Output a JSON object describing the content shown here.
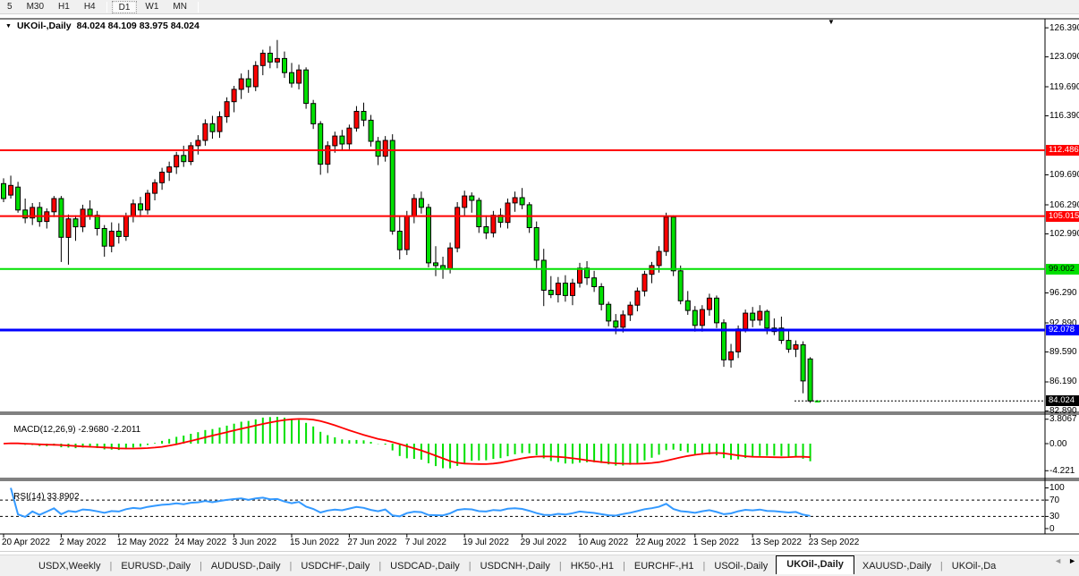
{
  "toolbar": {
    "periods": [
      "5",
      "M30",
      "H1",
      "H4",
      "D1",
      "W1",
      "MN"
    ],
    "active_period": "D1",
    "separators_after": [
      3,
      6
    ]
  },
  "icons": {
    "dropdown_arrow": "▼",
    "shift_marker": "▼",
    "tab_scroll_left": "◄",
    "tab_scroll_right": "►"
  },
  "chart": {
    "title_symbol": "UKOil-,Daily",
    "title_ohlc": "84.024 84.109 83.975 84.024",
    "colors": {
      "up_candle": "#ff0000",
      "down_candle": "#00e000",
      "wick": "#000000",
      "hline_red": "#ff0000",
      "hline_green": "#00e000",
      "hline_blue": "#0000ff",
      "macd_hist": "#00e000",
      "macd_signal": "#ff0000",
      "rsi_line": "#3399ff"
    },
    "price_ticks": [
      {
        "t": "126.390",
        "p": 126.39
      },
      {
        "t": "123.090",
        "p": 123.09
      },
      {
        "t": "119.690",
        "p": 119.69
      },
      {
        "t": "116.390",
        "p": 116.39
      },
      {
        "t": "109.690",
        "p": 109.69
      },
      {
        "t": "106.290",
        "p": 106.29
      },
      {
        "t": "102.990",
        "p": 102.99
      },
      {
        "t": "96.290",
        "p": 96.29
      },
      {
        "t": "92.890",
        "p": 92.89
      },
      {
        "t": "89.590",
        "p": 89.59
      },
      {
        "t": "86.190",
        "p": 86.19
      },
      {
        "t": "82.890",
        "p": 82.89
      }
    ],
    "hlines": [
      {
        "p": 112.486,
        "c": "#ff0000",
        "w": 2
      },
      {
        "p": 105.015,
        "c": "#ff0000",
        "w": 2
      },
      {
        "p": 99.002,
        "c": "#00e000",
        "w": 2
      },
      {
        "p": 92.078,
        "c": "#0000ff",
        "w": 3
      }
    ],
    "badges": [
      {
        "t": "112.486",
        "p": 112.486,
        "bg": "#ff0000",
        "fg": "#ffffff"
      },
      {
        "t": "105.015",
        "p": 105.015,
        "bg": "#ff0000",
        "fg": "#ffffff"
      },
      {
        "t": "99.002",
        "p": 99.002,
        "bg": "#00e000",
        "fg": "#000000"
      },
      {
        "t": "92.078",
        "p": 92.078,
        "bg": "#0000ff",
        "fg": "#ffffff"
      },
      {
        "t": "84.024",
        "p": 84.024,
        "bg": "#000000",
        "fg": "#ffffff"
      }
    ],
    "current_price": 84.024,
    "candles": [
      [
        108.7,
        109.3,
        106.6,
        107.0
      ],
      [
        107.4,
        109.6,
        107.0,
        108.5
      ],
      [
        108.3,
        108.9,
        105.4,
        105.7
      ],
      [
        105.7,
        107.0,
        104.2,
        104.8
      ],
      [
        104.8,
        106.5,
        104.0,
        106.0
      ],
      [
        106.0,
        106.6,
        103.8,
        104.4
      ],
      [
        104.4,
        105.9,
        103.6,
        105.5
      ],
      [
        105.5,
        107.3,
        104.9,
        107.0
      ],
      [
        107.0,
        107.3,
        99.8,
        102.6
      ],
      [
        102.6,
        105.2,
        99.5,
        104.7
      ],
      [
        104.7,
        105.1,
        102.2,
        103.8
      ],
      [
        103.8,
        106.3,
        103.2,
        105.8
      ],
      [
        105.8,
        106.8,
        104.6,
        105.1
      ],
      [
        105.1,
        105.6,
        102.8,
        103.6
      ],
      [
        103.6,
        104.0,
        100.4,
        101.6
      ],
      [
        101.6,
        104.3,
        100.9,
        103.3
      ],
      [
        103.3,
        104.2,
        101.9,
        102.7
      ],
      [
        102.7,
        105.4,
        102.2,
        105.0
      ],
      [
        105.0,
        106.9,
        104.3,
        106.4
      ],
      [
        106.4,
        107.2,
        104.9,
        105.7
      ],
      [
        105.7,
        108.0,
        105.2,
        107.6
      ],
      [
        107.6,
        109.2,
        106.8,
        108.8
      ],
      [
        108.8,
        110.5,
        108.0,
        110.0
      ],
      [
        110.0,
        111.2,
        109.0,
        110.6
      ],
      [
        110.6,
        112.3,
        109.8,
        111.9
      ],
      [
        111.9,
        113.0,
        110.6,
        111.2
      ],
      [
        111.2,
        113.4,
        110.8,
        113.0
      ],
      [
        113.0,
        114.2,
        112.0,
        113.6
      ],
      [
        113.6,
        116.0,
        113.0,
        115.5
      ],
      [
        115.5,
        116.4,
        113.8,
        114.6
      ],
      [
        114.6,
        116.9,
        113.9,
        116.3
      ],
      [
        116.3,
        118.5,
        115.6,
        118.0
      ],
      [
        118.0,
        119.8,
        116.8,
        119.4
      ],
      [
        119.4,
        121.2,
        118.3,
        120.6
      ],
      [
        120.6,
        121.6,
        119.0,
        119.7
      ],
      [
        119.7,
        122.6,
        119.2,
        122.1
      ],
      [
        122.1,
        123.9,
        121.0,
        123.5
      ],
      [
        123.5,
        124.3,
        121.8,
        122.5
      ],
      [
        122.5,
        125.0,
        121.8,
        122.9
      ],
      [
        122.9,
        123.7,
        120.7,
        121.3
      ],
      [
        121.3,
        122.4,
        119.6,
        120.1
      ],
      [
        120.1,
        122.2,
        119.4,
        121.6
      ],
      [
        121.6,
        121.9,
        117.2,
        117.8
      ],
      [
        117.8,
        118.2,
        114.9,
        115.5
      ],
      [
        115.5,
        115.8,
        109.7,
        110.9
      ],
      [
        110.9,
        113.5,
        109.9,
        113.0
      ],
      [
        113.0,
        114.6,
        112.2,
        114.1
      ],
      [
        114.1,
        114.8,
        112.4,
        113.2
      ],
      [
        113.2,
        115.4,
        112.6,
        115.0
      ],
      [
        115.0,
        117.5,
        114.6,
        116.9
      ],
      [
        116.9,
        117.9,
        115.2,
        115.9
      ],
      [
        115.9,
        116.5,
        112.9,
        113.5
      ],
      [
        113.5,
        114.0,
        110.8,
        111.8
      ],
      [
        111.8,
        114.1,
        111.2,
        113.6
      ],
      [
        113.6,
        114.3,
        102.9,
        103.3
      ],
      [
        103.3,
        105.0,
        100.1,
        101.2
      ],
      [
        101.2,
        105.6,
        100.6,
        105.0
      ],
      [
        105.0,
        107.5,
        104.2,
        107.0
      ],
      [
        107.0,
        107.8,
        105.3,
        106.0
      ],
      [
        106.0,
        106.4,
        99.2,
        99.7
      ],
      [
        99.7,
        101.6,
        98.2,
        99.4
      ],
      [
        99.4,
        100.4,
        97.9,
        99.0
      ],
      [
        99.0,
        102.0,
        98.5,
        101.4
      ],
      [
        101.4,
        106.6,
        100.9,
        106.0
      ],
      [
        106.0,
        107.9,
        105.0,
        107.3
      ],
      [
        107.3,
        107.7,
        105.4,
        106.8
      ],
      [
        106.8,
        107.1,
        103.1,
        103.8
      ],
      [
        103.8,
        105.1,
        102.4,
        103.1
      ],
      [
        103.1,
        105.6,
        102.6,
        105.1
      ],
      [
        105.1,
        105.9,
        103.7,
        104.3
      ],
      [
        104.3,
        107.0,
        103.6,
        106.5
      ],
      [
        106.5,
        107.8,
        105.5,
        107.1
      ],
      [
        107.1,
        108.2,
        105.8,
        106.3
      ],
      [
        106.3,
        106.6,
        103.1,
        103.7
      ],
      [
        103.7,
        104.4,
        99.1,
        100.0
      ],
      [
        100.0,
        101.3,
        94.8,
        96.6
      ],
      [
        96.6,
        98.2,
        95.7,
        96.1
      ],
      [
        96.1,
        98.1,
        95.2,
        97.4
      ],
      [
        97.4,
        98.3,
        95.3,
        96.0
      ],
      [
        96.0,
        97.9,
        94.9,
        97.4
      ],
      [
        97.4,
        99.7,
        96.9,
        99.1
      ],
      [
        99.1,
        99.9,
        97.2,
        98.0
      ],
      [
        98.0,
        98.8,
        96.4,
        97.0
      ],
      [
        97.0,
        97.4,
        94.3,
        95.0
      ],
      [
        95.0,
        95.3,
        92.5,
        93.1
      ],
      [
        93.1,
        93.9,
        91.6,
        92.4
      ],
      [
        92.4,
        94.3,
        91.8,
        93.8
      ],
      [
        93.8,
        95.3,
        93.1,
        94.9
      ],
      [
        94.9,
        96.9,
        94.2,
        96.5
      ],
      [
        96.5,
        98.8,
        95.9,
        98.4
      ],
      [
        98.4,
        99.8,
        97.4,
        99.4
      ],
      [
        99.4,
        101.6,
        98.6,
        101.0
      ],
      [
        101.0,
        105.4,
        100.5,
        104.9
      ],
      [
        104.9,
        105.1,
        98.2,
        98.8
      ],
      [
        98.8,
        99.4,
        95.0,
        95.4
      ],
      [
        95.4,
        96.5,
        93.8,
        94.3
      ],
      [
        94.3,
        94.8,
        91.9,
        92.6
      ],
      [
        92.6,
        94.9,
        91.9,
        94.4
      ],
      [
        94.4,
        96.2,
        93.7,
        95.7
      ],
      [
        95.7,
        96.0,
        92.3,
        92.9
      ],
      [
        92.9,
        93.3,
        87.9,
        88.7
      ],
      [
        88.7,
        90.5,
        87.8,
        89.6
      ],
      [
        89.6,
        92.6,
        88.9,
        92.2
      ],
      [
        92.2,
        94.4,
        91.8,
        94.0
      ],
      [
        94.0,
        94.7,
        92.4,
        93.2
      ],
      [
        93.2,
        94.9,
        92.6,
        94.2
      ],
      [
        94.2,
        94.4,
        91.6,
        92.3
      ],
      [
        92.3,
        93.4,
        91.5,
        91.9
      ],
      [
        92.3,
        93.6,
        90.5,
        90.9
      ],
      [
        90.9,
        92.0,
        89.5,
        89.9
      ],
      [
        89.9,
        90.9,
        89.0,
        90.4
      ],
      [
        90.4,
        90.8,
        84.9,
        86.3
      ],
      [
        88.8,
        89.0,
        83.8,
        84.02
      ],
      [
        84.024,
        84.109,
        83.975,
        84.024
      ]
    ]
  },
  "macd": {
    "label": "MACD(12,26,9)",
    "values": "-2.9680 -2.2011",
    "ticks": [
      {
        "t": "3.8067",
        "v": 3.8067
      },
      {
        "t": "0.00",
        "v": 0
      },
      {
        "t": "-4.221",
        "v": -4.221
      }
    ]
  },
  "rsi": {
    "label": "RSI(14)",
    "value": "33.8902",
    "ticks": [
      {
        "t": "100",
        "v": 100
      },
      {
        "t": "70",
        "v": 70
      },
      {
        "t": "30",
        "v": 30
      },
      {
        "t": "0",
        "v": 0
      }
    ],
    "levels": [
      70,
      30
    ]
  },
  "dates": [
    {
      "label": "20 Apr 2022",
      "i": 0
    },
    {
      "label": "2 May 2022",
      "i": 8
    },
    {
      "label": "12 May 2022",
      "i": 16
    },
    {
      "label": "24 May 2022",
      "i": 24
    },
    {
      "label": "3 Jun 2022",
      "i": 32
    },
    {
      "label": "15 Jun 2022",
      "i": 40
    },
    {
      "label": "27 Jun 2022",
      "i": 48
    },
    {
      "label": "7 Jul 2022",
      "i": 56
    },
    {
      "label": "19 Jul 2022",
      "i": 64
    },
    {
      "label": "29 Jul 2022",
      "i": 72
    },
    {
      "label": "10 Aug 2022",
      "i": 80
    },
    {
      "label": "22 Aug 2022",
      "i": 88
    },
    {
      "label": "1 Sep 2022",
      "i": 96
    },
    {
      "label": "13 Sep 2022",
      "i": 104
    },
    {
      "label": "23 Sep 2022",
      "i": 112
    }
  ],
  "tabs": {
    "items": [
      "USDX,Weekly",
      "EURUSD-,Daily",
      "AUDUSD-,Daily",
      "USDCHF-,Daily",
      "USDCAD-,Daily",
      "USDCNH-,Daily",
      "HK50-,H1",
      "EURCHF-,H1",
      "USOil-,Daily",
      "UKOil-,Daily",
      "XAUUSD-,Daily",
      "UKOil-,Da"
    ],
    "active_index": 9
  }
}
